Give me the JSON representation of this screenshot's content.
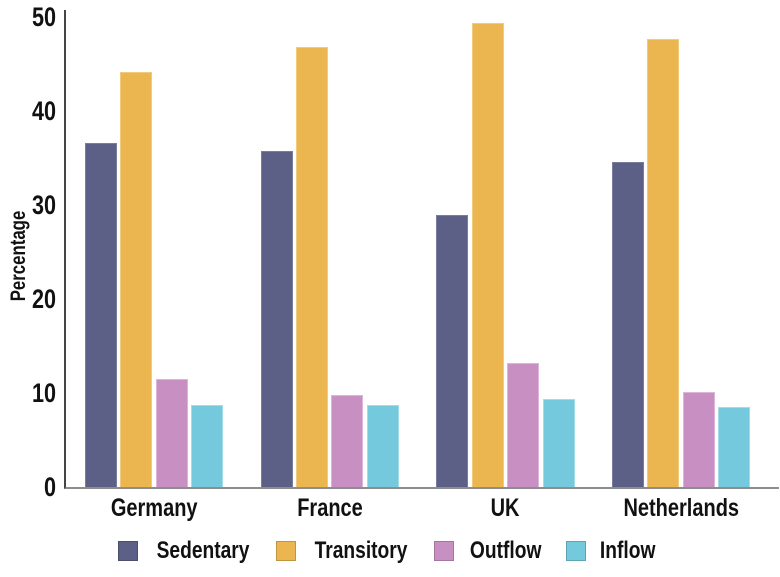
{
  "figure": {
    "background": "#ffffff",
    "axis_line_color": "#454545",
    "baseline_color": "#8d8d8d"
  },
  "chart_data": {
    "type": "bar",
    "title": "",
    "xlabel": "",
    "ylabel": "Percentage",
    "ylim": [
      0,
      50
    ],
    "yticks": [
      0,
      10,
      20,
      30,
      40,
      50
    ],
    "grid": false,
    "legend_position": "bottom",
    "categories": [
      "Germany",
      "France",
      "UK",
      "Netherlands"
    ],
    "series": [
      {
        "name": "Sedentary",
        "color": "#5c6086",
        "edge_color": "#787c9d",
        "values": [
          36.6,
          35.7,
          28.9,
          34.6
        ]
      },
      {
        "name": "Transitory",
        "color": "#ebb64f",
        "edge_color": "#f1ca7e",
        "values": [
          44.2,
          46.8,
          49.4,
          47.7
        ]
      },
      {
        "name": "Outflow",
        "color": "#c88fc2",
        "edge_color": "#deb4da",
        "values": [
          11.5,
          9.8,
          13.2,
          10.1
        ]
      },
      {
        "name": "Inflow",
        "color": "#75c9dc",
        "edge_color": "#a3dbe8",
        "values": [
          8.7,
          8.7,
          9.4,
          8.5
        ]
      }
    ]
  }
}
